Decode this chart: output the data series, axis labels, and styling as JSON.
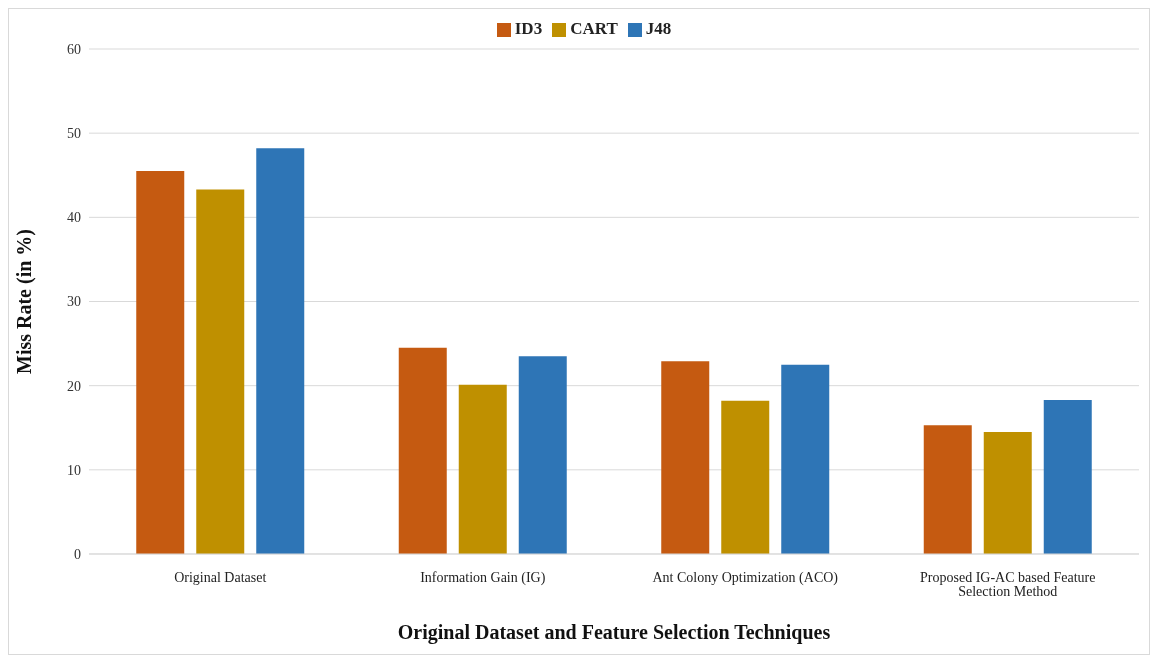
{
  "chart_data": {
    "type": "bar",
    "xlabel": "Original Dataset and Feature Selection Techniques",
    "ylabel": "Miss Rate (in %)",
    "categories": [
      "Original Dataset",
      "Information Gain (IG)",
      "Ant Colony Optimization (ACO)",
      "Proposed IG-AC based Feature Selection Method"
    ],
    "series": [
      {
        "name": "ID3",
        "color": "#c55a11",
        "values": [
          45.5,
          24.5,
          22.9,
          15.3
        ]
      },
      {
        "name": "CART",
        "color": "#bf9000",
        "values": [
          43.3,
          20.1,
          18.2,
          14.5
        ]
      },
      {
        "name": "J48",
        "color": "#2e75b6",
        "values": [
          48.2,
          23.5,
          22.5,
          18.3
        ]
      }
    ],
    "ylim": [
      0,
      60
    ],
    "yticks": [
      0,
      10,
      20,
      30,
      40,
      50,
      60
    ],
    "grid": "y",
    "legend": "top"
  }
}
